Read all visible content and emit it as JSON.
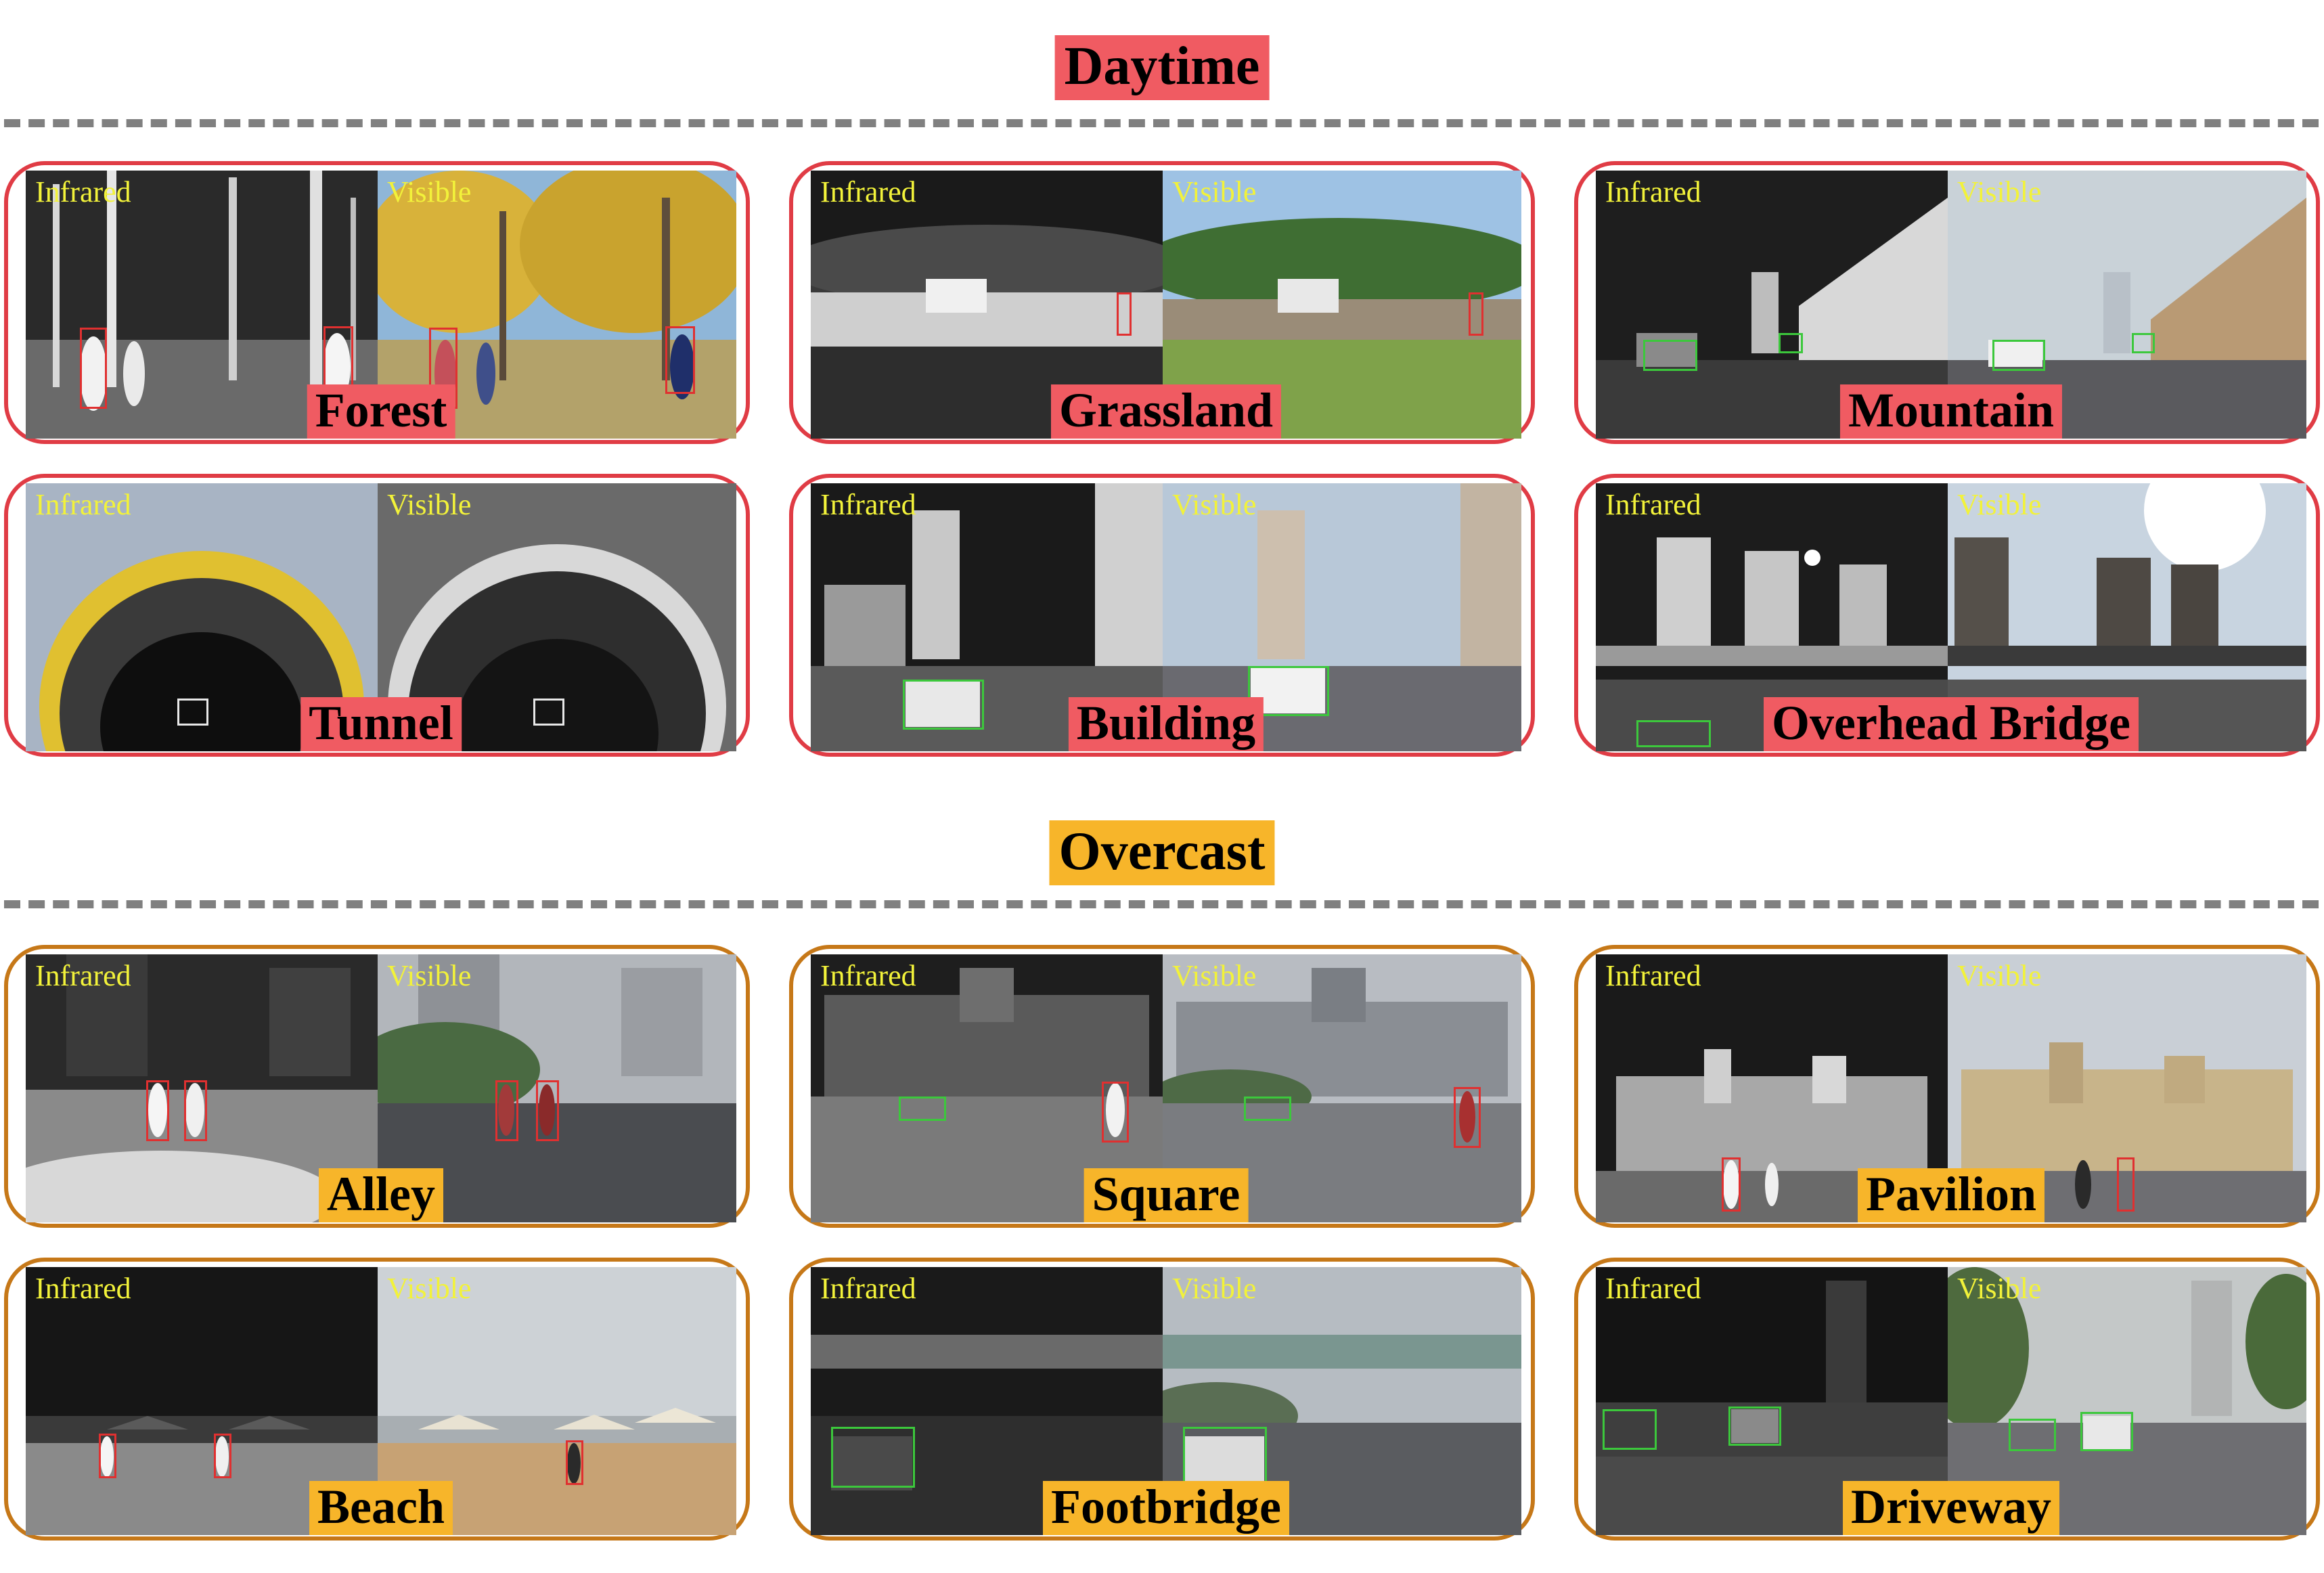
{
  "colors": {
    "daytime_accent": "#f05b62",
    "overcast_accent": "#f7b52a",
    "daytime_border": "#e03c45",
    "overcast_border": "#c67818",
    "divider": "#808080",
    "modality_label": "#f2f23a"
  },
  "sections": [
    {
      "title": "Daytime",
      "panels": [
        {
          "scene": "Forest",
          "infrared": "Infrared",
          "visible": "Visible"
        },
        {
          "scene": "Grassland",
          "infrared": "Infrared",
          "visible": "Visible"
        },
        {
          "scene": "Mountain",
          "infrared": "Infrared",
          "visible": "Visible"
        },
        {
          "scene": "Tunnel",
          "infrared": "Infrared",
          "visible": "Visible"
        },
        {
          "scene": "Building",
          "infrared": "Infrared",
          "visible": "Visible"
        },
        {
          "scene": "Overhead Bridge",
          "infrared": "Infrared",
          "visible": "Visible"
        }
      ]
    },
    {
      "title": "Overcast",
      "panels": [
        {
          "scene": "Alley",
          "infrared": "Infrared",
          "visible": "Visible"
        },
        {
          "scene": "Square",
          "infrared": "Infrared",
          "visible": "Visible"
        },
        {
          "scene": "Pavilion",
          "infrared": "Infrared",
          "visible": "Visible"
        },
        {
          "scene": "Beach",
          "infrared": "Infrared",
          "visible": "Visible"
        },
        {
          "scene": "Footbridge",
          "infrared": "Infrared",
          "visible": "Visible"
        },
        {
          "scene": "Driveway",
          "infrared": "Infrared",
          "visible": "Visible"
        }
      ]
    }
  ]
}
